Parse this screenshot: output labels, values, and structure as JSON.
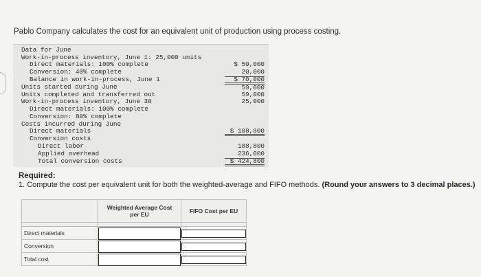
{
  "intro": "Pablo Company calculates the cost for an equivalent unit of production using process costing.",
  "data_box": {
    "lines": [
      {
        "text": "Data for June",
        "value": ""
      },
      {
        "text": "Work-in-process inventory, June 1: 25,000 units",
        "value": ""
      },
      {
        "text": "Direct materials: 100% complete",
        "value": "$ 50,000"
      },
      {
        "text": "Conversion: 40% complete",
        "value": "20,000"
      },
      {
        "text": "Balance in work-in-process, June 1",
        "value": "$ 70,000"
      },
      {
        "text": "Units started during June",
        "value": "59,000"
      },
      {
        "text": "Units completed and transferred out",
        "value": "59,000"
      },
      {
        "text": "Work-in-process inventory, June 30",
        "value": "25,000"
      },
      {
        "text": "Direct materials: 100% complete",
        "value": ""
      },
      {
        "text": "Conversion: 80% complete",
        "value": ""
      },
      {
        "text": "Costs incurred during June",
        "value": ""
      },
      {
        "text": "Direct materials",
        "value": "$ 188,800"
      },
      {
        "text": "Conversion costs",
        "value": ""
      },
      {
        "text": "Direct labor",
        "value": "188,800"
      },
      {
        "text": "Applied overhead",
        "value": "236,000"
      },
      {
        "text": "Total conversion costs",
        "value": "$ 424,800"
      }
    ]
  },
  "required": {
    "title": "Required:",
    "text_plain": "1. Compute the cost per equivalent unit for both the weighted-average and FIFO methods.",
    "text_bold": "(Round your answers to 3 decimal places.)"
  },
  "table": {
    "col_headers": [
      "Weighted Average Cost per EU",
      "FIFO Cost per EU"
    ],
    "rows": [
      {
        "label": "Direct materials",
        "weighted": "",
        "fifo": ""
      },
      {
        "label": "Conversion",
        "weighted": "",
        "fifo": ""
      },
      {
        "label": "Total cost",
        "weighted": "",
        "fifo": ""
      }
    ]
  }
}
